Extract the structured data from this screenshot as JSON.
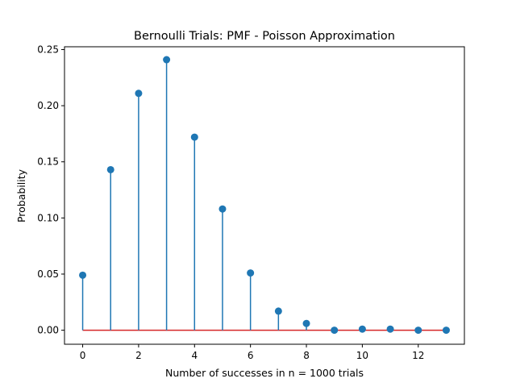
{
  "chart_data": {
    "type": "stem",
    "title": "Bernoulli Trials: PMF - Poisson Approximation",
    "xlabel": "Number of successes in n = 1000 trials",
    "ylabel": "Probability",
    "x": [
      0,
      1,
      2,
      3,
      4,
      5,
      6,
      7,
      8,
      9,
      10,
      11,
      12,
      13
    ],
    "values": [
      0.049,
      0.143,
      0.211,
      0.241,
      0.172,
      0.108,
      0.051,
      0.017,
      0.006,
      0.0,
      0.001,
      0.001,
      0.0,
      0.0
    ],
    "xlim": [
      -0.65,
      13.65
    ],
    "ylim": [
      -0.0125,
      0.2525
    ],
    "xticks": [
      0,
      2,
      4,
      6,
      8,
      10,
      12
    ],
    "xtick_labels": [
      "0",
      "2",
      "4",
      "6",
      "8",
      "10",
      "12"
    ],
    "yticks": [
      0.0,
      0.05,
      0.1,
      0.15,
      0.2,
      0.25
    ],
    "ytick_labels": [
      "0.00",
      "0.05",
      "0.10",
      "0.15",
      "0.20",
      "0.25"
    ],
    "grid": false,
    "colors": {
      "stem": "#1f77b4",
      "marker": "#1f77b4",
      "baseline": "#d62728"
    }
  }
}
